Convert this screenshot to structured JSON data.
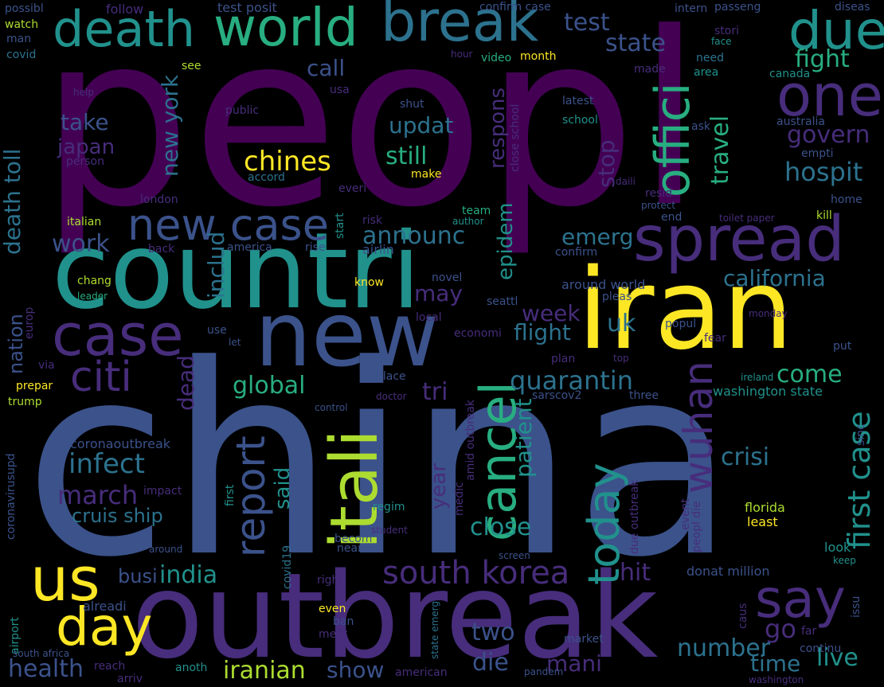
{
  "palette": {
    "background": "#000000",
    "dark_purple": "#440154",
    "purple": "#472d7b",
    "indigo": "#3b528b",
    "blue": "#2c728e",
    "teal": "#21918c",
    "green_teal": "#28ae80",
    "green": "#5ec962",
    "yellow_green": "#addc30",
    "yellow": "#fde725"
  },
  "words": {
    "peopl": "peopl",
    "china": "china",
    "countri": "countri",
    "iran": "iran",
    "outbreak": "outbreak",
    "new": "new",
    "break": "break",
    "world": "world",
    "death": "death",
    "due": "due",
    "one": "one",
    "spread": "spread",
    "offici": "offici",
    "case": "case",
    "new_case": "new case",
    "citi": "citi",
    "us": "us",
    "day": "day",
    "say": "say",
    "itali": "itali",
    "cancel": "cancel",
    "today": "today",
    "report": "report",
    "wuhan": "wuhan",
    "south_korea": "south korea",
    "first_case": "first case",
    "chines": "chines",
    "hospit": "hospit",
    "test": "test",
    "state": "state",
    "fight": "fight",
    "govern": "govern",
    "travel": "travel",
    "call": "call",
    "take": "take",
    "japan": "japan",
    "new_york": "new york",
    "updat": "updat",
    "still": "still",
    "respons": "respons",
    "stop": "stop",
    "announc": "announc",
    "emerg": "emerg",
    "epidem": "epidem",
    "includ": "includ",
    "work": "work",
    "death_toll": "death toll",
    "california": "california",
    "may": "may",
    "week": "week",
    "uk": "uk",
    "flight": "flight",
    "quarantin": "quarantin",
    "come": "come",
    "global": "global",
    "tri": "tri",
    "infect": "infect",
    "march": "march",
    "cruis_ship": "cruis ship",
    "crisi": "crisi",
    "dead": "dead",
    "said": "said",
    "year": "year",
    "patient": "patient",
    "close": "close",
    "india": "india",
    "busi": "busi",
    "hit": "hit",
    "two": "two",
    "die": "die",
    "mani": "mani",
    "health": "health",
    "iranian": "iranian",
    "show": "show",
    "number": "number",
    "time": "time",
    "live": "live",
    "go": "go",
    "nation": "nation",
    "follow": "follow",
    "test_posit": "test posit",
    "confirm_case": "confirm case",
    "intern": "intern",
    "passeng": "passeng",
    "diseas": "diseas",
    "possibl": "possibl",
    "watch": "watch",
    "man": "man",
    "covid": "covid",
    "stori": "stori",
    "face": "face",
    "hour": "hour",
    "video": "video",
    "month": "month",
    "need": "need",
    "see": "see",
    "made": "made",
    "area": "area",
    "canada": "canada",
    "help": "help",
    "usa": "usa",
    "latest": "latest",
    "shut": "shut",
    "public": "public",
    "close_school": "close school",
    "school": "school",
    "australia": "australia",
    "ask": "ask",
    "person": "person",
    "empti": "empti",
    "accord": "accord",
    "make": "make",
    "daili": "daili",
    "london": "london",
    "everi": "everi",
    "resid": "resid",
    "protect": "protect",
    "home": "home",
    "team": "team",
    "italian": "italian",
    "start": "start",
    "author": "author",
    "risk": "risk",
    "end": "end",
    "toilet_paper": "toilet paper",
    "kill": "kill",
    "back": "back",
    "america": "america",
    "rise": "rise",
    "airlin": "airlin",
    "confirm": "confirm",
    "chang": "chang",
    "leader": "leader",
    "know": "know",
    "novel": "novel",
    "around_world": "around world",
    "pleas": "pleas",
    "seattl": "seattl",
    "coronavirusupd": "coronavirusupd",
    "europ": "europ",
    "use": "use",
    "let": "let",
    "local": "local",
    "economi": "economi",
    "monday": "monday",
    "popul": "popul",
    "fear": "fear",
    "top": "top",
    "plan": "plan",
    "put": "put",
    "via": "via",
    "prepar": "prepar",
    "place": "place",
    "ireland": "ireland",
    "doctor": "doctor",
    "sarscov2": "sarscov2",
    "three": "three",
    "trump": "trump",
    "control": "control",
    "washington_state": "washington state",
    "coronaoutbreak": "coronaoutbreak",
    "sinc": "sinc",
    "impact": "impact",
    "amid_outbreak": "amid outbreak",
    "medic": "medic",
    "due_outbreak": "due outbreak",
    "first": "first",
    "regim": "regim",
    "event": "event",
    "peopl_die": "peopl die",
    "florida": "florida",
    "least": "least",
    "covid19": "covid19",
    "student": "student",
    "becom": "becom",
    "near": "near",
    "around": "around",
    "screen": "screen",
    "look": "look",
    "keep": "keep",
    "donat_million": "donat million",
    "right": "right",
    "issu": "issu",
    "alreadi": "alreadi",
    "airport": "airport",
    "even": "even",
    "ban": "ban",
    "meet": "meet",
    "state_emerg": "state emerg",
    "caus": "caus",
    "far": "far",
    "market": "market",
    "continu": "continu",
    "south_africa": "south africa",
    "reach": "reach",
    "arriv": "arriv",
    "anoth": "anoth",
    "american": "american",
    "pandem": "pandem",
    "washington": "washington"
  }
}
